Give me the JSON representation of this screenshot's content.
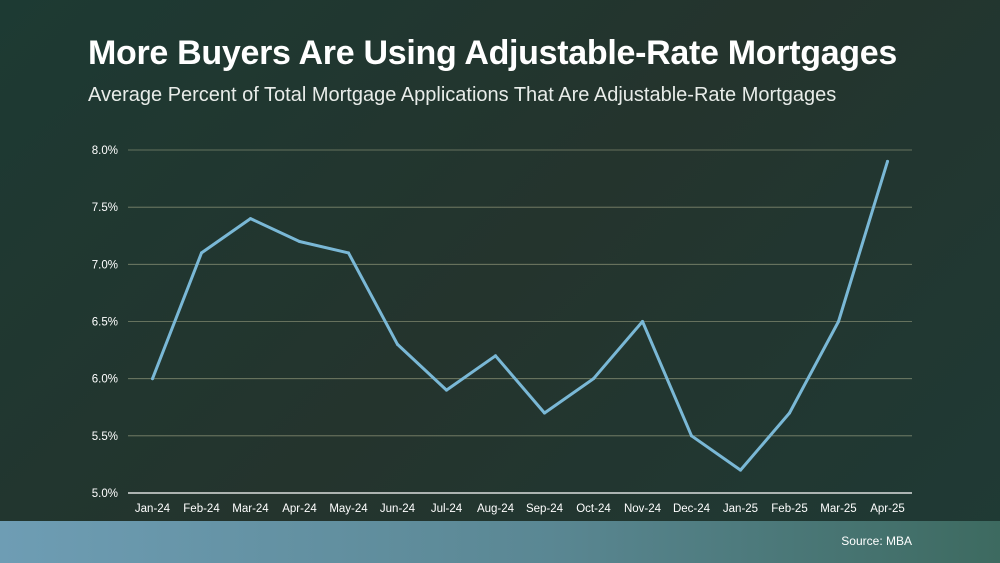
{
  "header": {
    "title": "More Buyers Are Using Adjustable-Rate Mortgages",
    "subtitle": "Average Percent of Total Mortgage Applications That Are Adjustable-Rate Mortgages"
  },
  "footer": {
    "source": "Source: MBA"
  },
  "colors": {
    "line": "#7ab8d6",
    "grid": "#c8c8a0",
    "axis": "#ffffff"
  },
  "chart_data": {
    "type": "line",
    "title": "More Buyers Are Using Adjustable-Rate Mortgages",
    "subtitle": "Average Percent of Total Mortgage Applications That Are Adjustable-Rate Mortgages",
    "xlabel": "",
    "ylabel": "",
    "categories": [
      "Jan-24",
      "Feb-24",
      "Mar-24",
      "Apr-24",
      "May-24",
      "Jun-24",
      "Jul-24",
      "Aug-24",
      "Sep-24",
      "Oct-24",
      "Nov-24",
      "Dec-24",
      "Jan-25",
      "Feb-25",
      "Mar-25",
      "Apr-25"
    ],
    "values": [
      6.0,
      7.1,
      7.4,
      7.2,
      7.1,
      6.3,
      5.9,
      6.2,
      5.7,
      6.0,
      6.5,
      5.5,
      5.2,
      5.7,
      6.5,
      7.9
    ],
    "ylim": [
      5.0,
      8.0
    ],
    "yticks": [
      "5.0%",
      "5.5%",
      "6.0%",
      "6.5%",
      "7.0%",
      "7.5%",
      "8.0%"
    ],
    "ytick_values": [
      5.0,
      5.5,
      6.0,
      6.5,
      7.0,
      7.5,
      8.0
    ],
    "grid": true,
    "legend": "none"
  }
}
